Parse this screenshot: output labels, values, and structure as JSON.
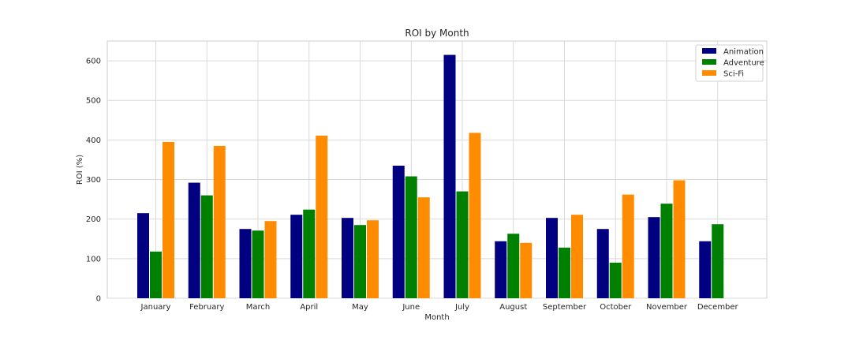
{
  "chart_data": {
    "type": "bar",
    "title": "ROI by Month",
    "xlabel": "Month",
    "ylabel": "ROI (%)",
    "ylim": [
      0,
      650
    ],
    "yticks": [
      0,
      100,
      200,
      300,
      400,
      500,
      600
    ],
    "grid": true,
    "legend_position": "top-right",
    "categories": [
      "January",
      "February",
      "March",
      "April",
      "May",
      "June",
      "July",
      "August",
      "September",
      "October",
      "November",
      "December"
    ],
    "series": [
      {
        "name": "Animation",
        "color": "#000080",
        "values": [
          215,
          292,
          175,
          211,
          203,
          335,
          615,
          144,
          203,
          175,
          205,
          144
        ]
      },
      {
        "name": "Adventure",
        "color": "#008000",
        "values": [
          118,
          260,
          171,
          224,
          185,
          308,
          270,
          163,
          128,
          90,
          239,
          187
        ]
      },
      {
        "name": "Sci-Fi",
        "color": "#FF8C00",
        "values": [
          395,
          385,
          195,
          411,
          197,
          255,
          418,
          140,
          211,
          262,
          298,
          null
        ]
      }
    ]
  }
}
